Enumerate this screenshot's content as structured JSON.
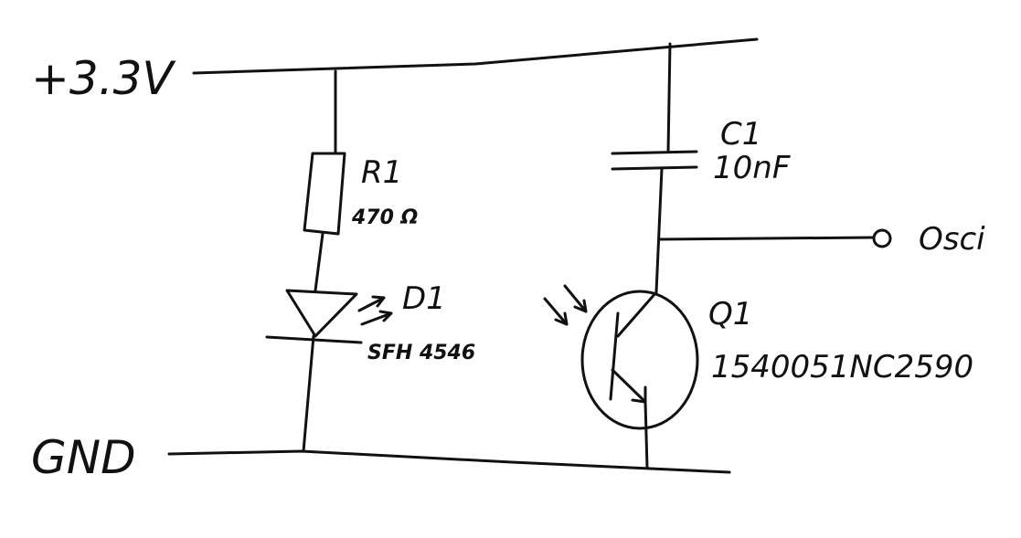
{
  "rails": {
    "vcc_label": "+3.3V",
    "gnd_label": "GND"
  },
  "components": {
    "r1": {
      "name": "R1",
      "value": "470 Ω"
    },
    "d1": {
      "name": "D1",
      "part": "SFH 4546"
    },
    "c1": {
      "name": "C1",
      "value": "10nF"
    },
    "q1": {
      "name": "Q1",
      "part": "1540051NC2590"
    }
  },
  "output": {
    "label": "Osci"
  },
  "style": {
    "ink": "#111111",
    "background": "#ffffff"
  }
}
